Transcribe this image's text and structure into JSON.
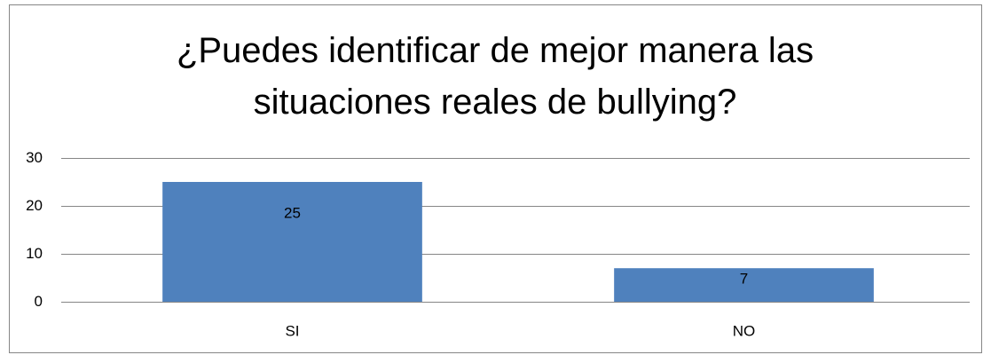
{
  "chart_data": {
    "type": "bar",
    "title": "¿Puedes identificar de mejor manera las situaciones reales de bullying?",
    "categories": [
      "SI",
      "NO"
    ],
    "values": [
      25,
      7
    ],
    "color": "#4f81bd",
    "ylim": [
      0,
      30
    ],
    "yticks": [
      0,
      10,
      20,
      30
    ],
    "grid": true
  }
}
